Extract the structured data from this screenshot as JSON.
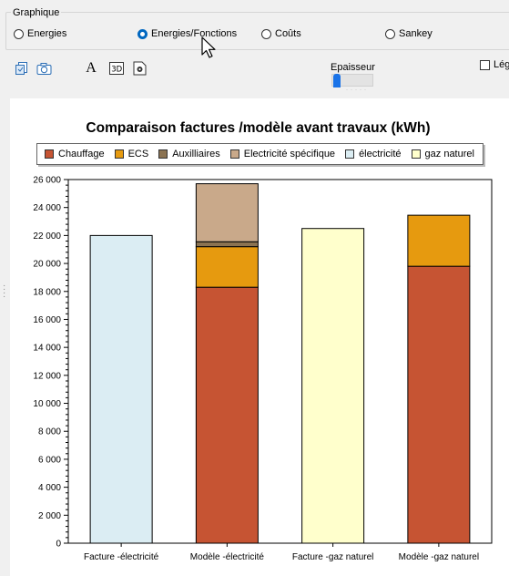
{
  "group": {
    "title": "Graphique",
    "options": [
      {
        "label": "Energies",
        "checked": false
      },
      {
        "label": "Energies/Fonctions",
        "checked": true
      },
      {
        "label": "Coûts",
        "checked": false
      },
      {
        "label": "Sankey",
        "checked": false
      }
    ]
  },
  "toolbar": {
    "icons": [
      "copy-icon",
      "camera-icon",
      "font-icon",
      "3d-icon",
      "settings-icon"
    ],
    "slider_label": "Epaisseur",
    "slider_value": 0.05,
    "legend_checkbox_label": "Lég"
  },
  "chart_data": {
    "type": "bar",
    "title": "Comparaison factures /modèle avant travaux  (kWh)",
    "stacked": true,
    "categories": [
      "Facture -électricité",
      "Modèle -électricité",
      "Facture -gaz naturel",
      "Modèle -gaz naturel"
    ],
    "series": [
      {
        "name": "Chauffage",
        "color": "#c65433",
        "values": [
          0,
          18300,
          0,
          19800
        ]
      },
      {
        "name": "ECS",
        "color": "#e69a0f",
        "values": [
          0,
          2900,
          0,
          3650
        ]
      },
      {
        "name": "Auxilliaires",
        "color": "#8b7352",
        "values": [
          0,
          350,
          0,
          0
        ]
      },
      {
        "name": "Electricité spécifique",
        "color": "#c9a98a",
        "values": [
          0,
          4150,
          0,
          0
        ]
      },
      {
        "name": "électricité",
        "color": "#dbedf3",
        "values": [
          22000,
          0,
          0,
          0
        ]
      },
      {
        "name": "gaz naturel",
        "color": "#ffffcc",
        "values": [
          0,
          0,
          22500,
          0
        ]
      }
    ],
    "ylim": [
      0,
      26000
    ],
    "yticks": [
      "0",
      "2 000",
      "4 000",
      "6 000",
      "8 000",
      "10 000",
      "12 000",
      "14 000",
      "16 000",
      "18 000",
      "20 000",
      "22 000",
      "24 000",
      "26 000"
    ],
    "ytick_step": 2000,
    "legend_position": "top",
    "grid": false
  }
}
